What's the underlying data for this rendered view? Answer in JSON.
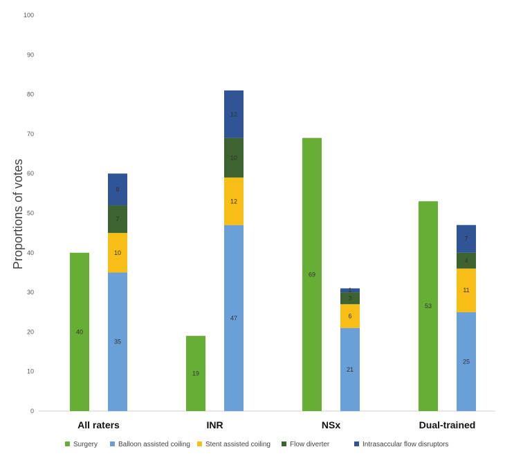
{
  "chart_data": {
    "type": "bar",
    "ylabel": "Proportions of votes",
    "xlabel": "",
    "ylim": [
      0,
      100
    ],
    "yticks": [
      0,
      10,
      20,
      30,
      40,
      50,
      60,
      70,
      80,
      90,
      100
    ],
    "grid": false,
    "legend": "bottom",
    "categories": [
      "All raters",
      "INR",
      "NSx",
      "Dual-trained"
    ],
    "surgery": {
      "name": "Surgery",
      "color": "#67ae37",
      "values": [
        40,
        19,
        69,
        53
      ]
    },
    "endovascular_stack": [
      {
        "name": "Balloon assisted coiling",
        "color": "#6b9fd8",
        "values": [
          35,
          47,
          21,
          25
        ]
      },
      {
        "name": "Stent assisted coiling",
        "color": "#f7be15",
        "values": [
          10,
          12,
          6,
          11
        ]
      },
      {
        "name": "Flow diverter",
        "color": "#3d6430",
        "values": [
          7,
          10,
          3,
          4
        ]
      },
      {
        "name": "Intrasaccular flow disruptors",
        "color": "#2f5597",
        "values": [
          8,
          12,
          1,
          7
        ]
      }
    ]
  }
}
